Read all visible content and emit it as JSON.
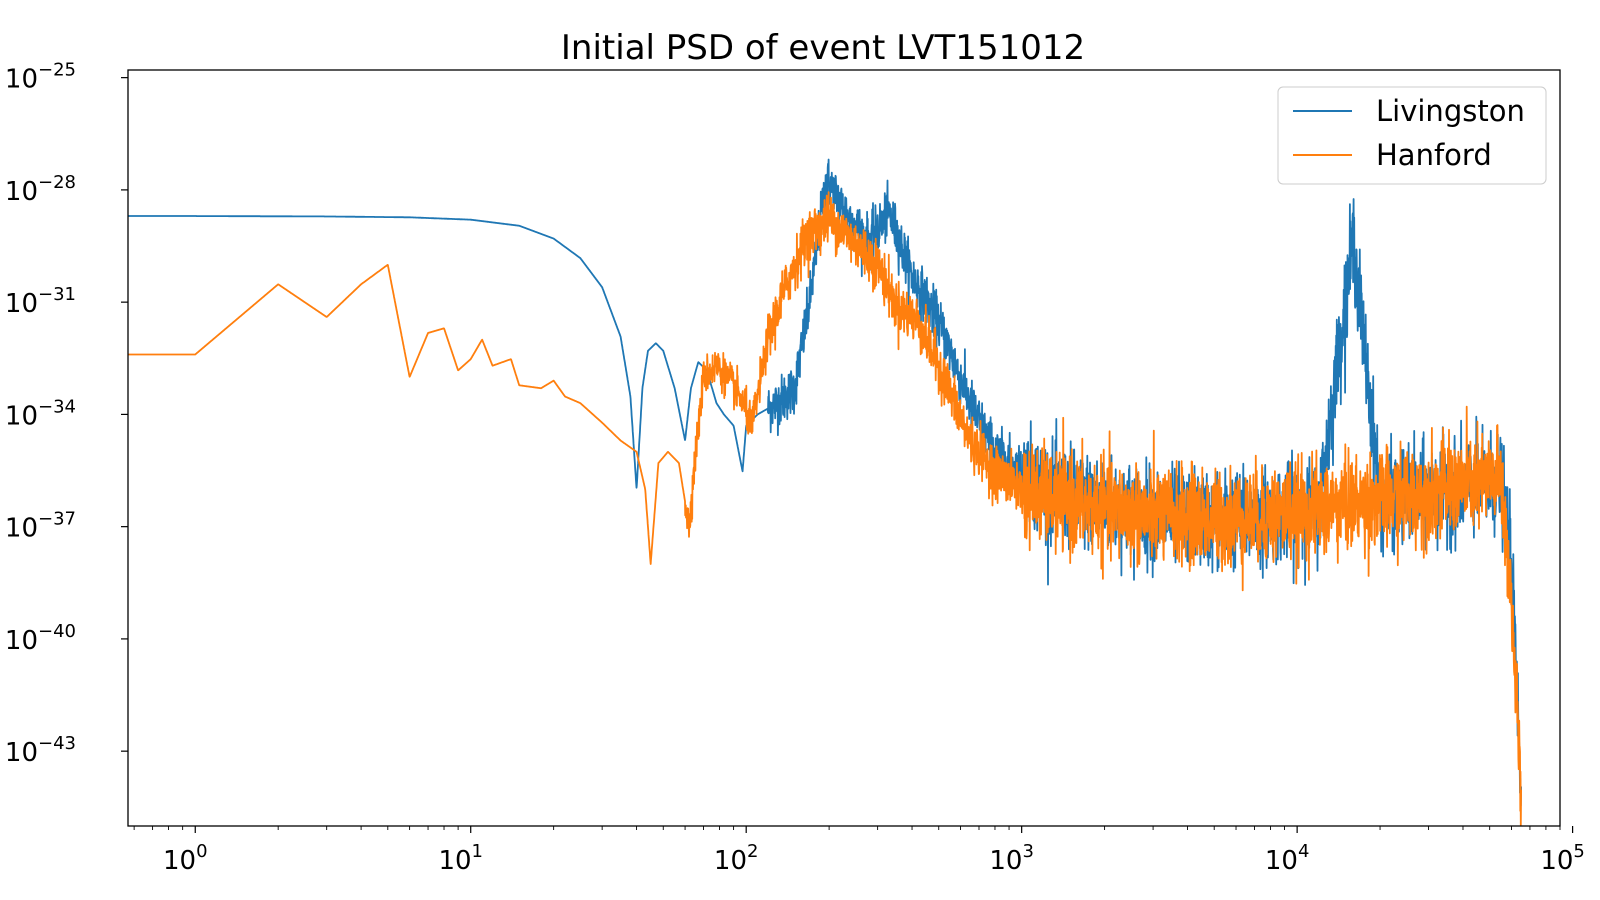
{
  "chart_data": {
    "type": "line",
    "title": "Initial PSD of event LVT151012",
    "xlabel": "",
    "ylabel": "",
    "x_scale": "log",
    "y_scale": "log",
    "xlim": [
      0.57,
      90000
    ],
    "ylim": [
      1e-45,
      1.6e-25
    ],
    "x_ticks": [
      {
        "base": "10",
        "exp": "0",
        "value": 1
      },
      {
        "base": "10",
        "exp": "1",
        "value": 10
      },
      {
        "base": "10",
        "exp": "2",
        "value": 100
      },
      {
        "base": "10",
        "exp": "3",
        "value": 1000
      },
      {
        "base": "10",
        "exp": "4",
        "value": 10000
      },
      {
        "base": "10",
        "exp": "5",
        "value": 100000
      }
    ],
    "y_ticks": [
      {
        "base": "10",
        "exp": "−25",
        "value": 1e-25
      },
      {
        "base": "10",
        "exp": "−28",
        "value": 1e-28
      },
      {
        "base": "10",
        "exp": "−31",
        "value": 1e-31
      },
      {
        "base": "10",
        "exp": "−34",
        "value": 1e-34
      },
      {
        "base": "10",
        "exp": "−37",
        "value": 1e-37
      },
      {
        "base": "10",
        "exp": "−40",
        "value": 1e-40
      },
      {
        "base": "10",
        "exp": "−43",
        "value": 1e-43
      }
    ],
    "grid": false,
    "legend": "top-right",
    "series": [
      {
        "name": "Livingston",
        "color": "#1f77b4",
        "points": [
          [
            0.57,
            2e-29
          ],
          [
            1,
            2e-29
          ],
          [
            3,
            1.95e-29
          ],
          [
            6,
            1.85e-29
          ],
          [
            10,
            1.6e-29
          ],
          [
            15,
            1.1e-29
          ],
          [
            20,
            5e-30
          ],
          [
            25,
            1.5e-30
          ],
          [
            30,
            2.5e-31
          ],
          [
            35,
            1.2e-32
          ],
          [
            38,
            3e-34
          ],
          [
            40,
            1e-36
          ],
          [
            42,
            5e-34
          ],
          [
            44,
            5e-33
          ],
          [
            47,
            8e-33
          ],
          [
            50,
            5e-33
          ],
          [
            55,
            5e-34
          ],
          [
            60,
            2e-35
          ],
          [
            63,
            5e-34
          ],
          [
            67,
            2.5e-33
          ],
          [
            72,
            1.5e-33
          ],
          [
            78,
            2e-34
          ],
          [
            83,
            1e-34
          ],
          [
            90,
            5e-35
          ],
          [
            97,
            3e-36
          ],
          [
            100,
            5e-35
          ],
          [
            110,
            1e-34
          ],
          [
            130,
            2e-34
          ],
          [
            150,
            5e-34
          ],
          [
            170,
            1e-31
          ],
          [
            195,
            2e-28
          ],
          [
            210,
            8e-29
          ],
          [
            240,
            1.5e-29
          ],
          [
            280,
            4e-30
          ],
          [
            330,
            2.5e-29
          ],
          [
            400,
            5e-31
          ],
          [
            500,
            3e-32
          ],
          [
            650,
            2e-34
          ],
          [
            800,
            1e-35
          ],
          [
            1000,
            3e-36
          ],
          [
            1300,
            8e-37
          ],
          [
            2000,
            4e-37
          ],
          [
            3000,
            2e-37
          ],
          [
            5000,
            1.5e-37
          ],
          [
            8000,
            2e-37
          ],
          [
            12000,
            3e-37
          ],
          [
            16000,
            5e-30
          ],
          [
            20000,
            5e-37
          ],
          [
            30000,
            8e-37
          ],
          [
            40000,
            1e-36
          ],
          [
            55000,
            1.5e-36
          ],
          [
            60000,
            1e-38
          ],
          [
            65000,
            1e-44
          ]
        ]
      },
      {
        "name": "Hanford",
        "color": "#ff7f0e",
        "points": [
          [
            0.57,
            4e-33
          ],
          [
            1,
            4e-33
          ],
          [
            2,
            3e-31
          ],
          [
            3,
            4e-32
          ],
          [
            4,
            3e-31
          ],
          [
            5,
            1e-30
          ],
          [
            6,
            1e-33
          ],
          [
            7,
            1.5e-32
          ],
          [
            8,
            2e-32
          ],
          [
            9,
            1.5e-33
          ],
          [
            10,
            3e-33
          ],
          [
            11,
            1e-32
          ],
          [
            12,
            2e-33
          ],
          [
            14,
            3e-33
          ],
          [
            15,
            6e-34
          ],
          [
            18,
            5e-34
          ],
          [
            20,
            8e-34
          ],
          [
            22,
            3e-34
          ],
          [
            25,
            2e-34
          ],
          [
            30,
            6e-35
          ],
          [
            35,
            2e-35
          ],
          [
            40,
            1e-35
          ],
          [
            43,
            1e-36
          ],
          [
            45,
            1e-38
          ],
          [
            48,
            5e-36
          ],
          [
            52,
            1e-35
          ],
          [
            57,
            5e-36
          ],
          [
            62,
            1e-37
          ],
          [
            65,
            5e-36
          ],
          [
            70,
            1e-33
          ],
          [
            78,
            2e-33
          ],
          [
            85,
            1e-33
          ],
          [
            95,
            3e-34
          ],
          [
            105,
            5e-35
          ],
          [
            120,
            1e-32
          ],
          [
            140,
            3e-31
          ],
          [
            165,
            5e-30
          ],
          [
            200,
            1.8e-29
          ],
          [
            240,
            5e-30
          ],
          [
            300,
            1e-30
          ],
          [
            350,
            8e-32
          ],
          [
            420,
            3e-32
          ],
          [
            500,
            2e-33
          ],
          [
            650,
            2e-35
          ],
          [
            800,
            3e-36
          ],
          [
            1000,
            1e-36
          ],
          [
            1300,
            5e-37
          ],
          [
            2000,
            3e-37
          ],
          [
            3000,
            2e-37
          ],
          [
            5000,
            1.5e-37
          ],
          [
            8000,
            2e-37
          ],
          [
            12000,
            3e-37
          ],
          [
            20000,
            5e-37
          ],
          [
            30000,
            8e-37
          ],
          [
            45000,
            1.5e-36
          ],
          [
            55000,
            2e-36
          ],
          [
            60000,
            1e-39
          ],
          [
            65000,
            1e-44
          ]
        ]
      }
    ]
  }
}
